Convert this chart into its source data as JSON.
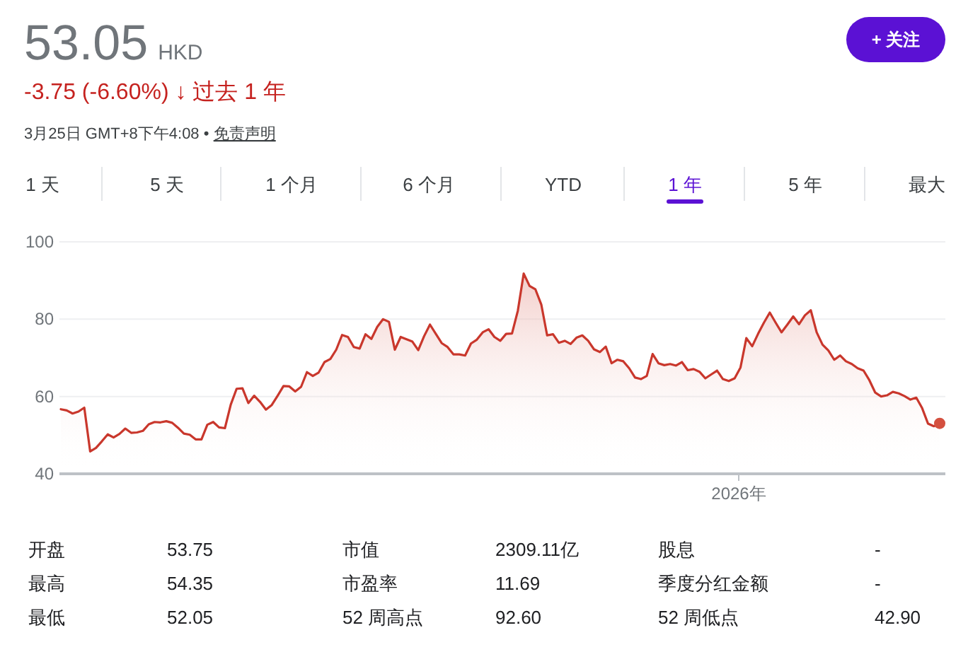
{
  "chart_data": {
    "type": "area",
    "title": "53.05",
    "categories": [
      null,
      null,
      null,
      null,
      null,
      null,
      null,
      null,
      null,
      null,
      null,
      null,
      null,
      null,
      null,
      null,
      null,
      null,
      null,
      null,
      null,
      null,
      null,
      null,
      null,
      null,
      null,
      null,
      null,
      null,
      null,
      null,
      null,
      null,
      null,
      null,
      null,
      null,
      null,
      null,
      null,
      null,
      null,
      null,
      null,
      null,
      null,
      null,
      null,
      null,
      null,
      null,
      null,
      null,
      null,
      null,
      null,
      null,
      null,
      null,
      null,
      null,
      null,
      null,
      null,
      null,
      null,
      null,
      null,
      null,
      null,
      null,
      null,
      null,
      null,
      null,
      null,
      null,
      null,
      null,
      null,
      null,
      null,
      null,
      null,
      null,
      null,
      null,
      null,
      null,
      null,
      null,
      null,
      null,
      null,
      null,
      null,
      null,
      null,
      null,
      null,
      null,
      null,
      null,
      null,
      null,
      null,
      null,
      null,
      null,
      null,
      null,
      null,
      null,
      null,
      null,
      null,
      null,
      null,
      null,
      null,
      null,
      null,
      null,
      null,
      null,
      null,
      null,
      null,
      null,
      null,
      null,
      null,
      null,
      null,
      null,
      null,
      null,
      null,
      null,
      null,
      null,
      null,
      null,
      null,
      null,
      null,
      null,
      null,
      null,
      null
    ],
    "series": [
      {
        "color": "#c9372c",
        "values": [
          56.7,
          56.4,
          55.6,
          56.1,
          57.1,
          45.8,
          46.7,
          48.4,
          50.2,
          49.4,
          50.3,
          51.7,
          50.6,
          50.7,
          51.1,
          52.8,
          53.4,
          53.3,
          53.6,
          53.2,
          51.9,
          50.4,
          50.1,
          48.9,
          48.9,
          52.7,
          53.4,
          52.0,
          51.8,
          57.9,
          62.0,
          62.1,
          58.3,
          60.2,
          58.6,
          56.6,
          57.8,
          60.2,
          62.7,
          62.6,
          61.3,
          62.5,
          66.3,
          65.3,
          66.2,
          68.9,
          69.7,
          72.1,
          75.9,
          75.4,
          72.8,
          72.4,
          76.1,
          74.9,
          78.0,
          80.0,
          79.3,
          72.1,
          75.4,
          74.8,
          74.2,
          72.0,
          75.6,
          78.6,
          76.2,
          73.8,
          72.8,
          70.9,
          70.9,
          70.6,
          73.7,
          74.7,
          76.6,
          77.4,
          75.4,
          74.4,
          76.2,
          76.3,
          82.2,
          91.8,
          88.6,
          87.7,
          83.8,
          75.8,
          76.1,
          73.9,
          74.4,
          73.6,
          75.2,
          75.8,
          74.4,
          72.2,
          71.5,
          72.9,
          68.6,
          69.5,
          69.1,
          67.3,
          64.9,
          64.5,
          65.3,
          71.0,
          68.6,
          68.1,
          68.4,
          68.0,
          68.9,
          66.8,
          67.1,
          66.4,
          64.7,
          65.7,
          66.7,
          64.5,
          64.0,
          64.7,
          67.5,
          75.1,
          73.0,
          76.2,
          79.1,
          81.7,
          79.1,
          76.6,
          78.6,
          80.7,
          78.7,
          81.0,
          82.3,
          76.6,
          73.4,
          71.9,
          69.5,
          70.6,
          69.1,
          68.4,
          67.3,
          66.7,
          64.2,
          61.0,
          60.0,
          60.3,
          61.2,
          60.8,
          60.1,
          59.2,
          59.7,
          57.0,
          53.0,
          52.3,
          53.05
        ]
      },
      {
        "type": "scatter",
        "color": "#d4503f",
        "values": [
          null,
          null,
          null,
          null,
          null,
          null,
          null,
          null,
          null,
          null,
          null,
          null,
          null,
          null,
          null,
          null,
          null,
          null,
          null,
          null,
          null,
          null,
          null,
          null,
          null,
          null,
          null,
          null,
          null,
          null,
          null,
          null,
          null,
          null,
          null,
          null,
          null,
          null,
          null,
          null,
          null,
          null,
          null,
          null,
          null,
          null,
          null,
          null,
          null,
          null,
          null,
          null,
          null,
          null,
          null,
          null,
          null,
          null,
          null,
          null,
          null,
          null,
          null,
          null,
          null,
          null,
          null,
          null,
          null,
          null,
          null,
          null,
          null,
          null,
          null,
          null,
          null,
          null,
          null,
          null,
          null,
          null,
          null,
          null,
          null,
          null,
          null,
          null,
          null,
          null,
          null,
          null,
          null,
          null,
          null,
          null,
          null,
          null,
          null,
          null,
          null,
          null,
          null,
          null,
          null,
          null,
          null,
          null,
          null,
          null,
          null,
          null,
          null,
          null,
          null,
          null,
          null,
          null,
          null,
          null,
          null,
          null,
          null,
          null,
          null,
          null,
          null,
          null,
          null,
          null,
          null,
          null,
          null,
          null,
          null,
          null,
          null,
          null,
          null,
          null,
          null,
          null,
          null,
          null,
          null,
          null,
          null,
          null,
          null,
          null,
          53.05
        ]
      }
    ],
    "ylim": [
      40,
      100
    ],
    "yticks": [
      40,
      60,
      80,
      100
    ],
    "grid": "y",
    "annotations": [
      "HKD",
      "-3.75 (-6.60%) ↓ 过去 1 年",
      "3月25日 GMT+8下午4:08 •",
      "免责声明",
      "+ 关注",
      "1 天",
      "5 天",
      "1 个月",
      "6 个月",
      "YTD",
      "1 年",
      "5 年",
      "最大",
      "开盘",
      "53.75",
      "市值",
      "2309.11亿",
      "股息",
      "-",
      "最高",
      "54.35",
      "市盈率",
      "11.69",
      "季度分红金额",
      "-",
      "最低",
      "52.05",
      "52 周高点",
      "92.60",
      "52 周低点",
      "42.90",
      "2026年"
    ]
  }
}
